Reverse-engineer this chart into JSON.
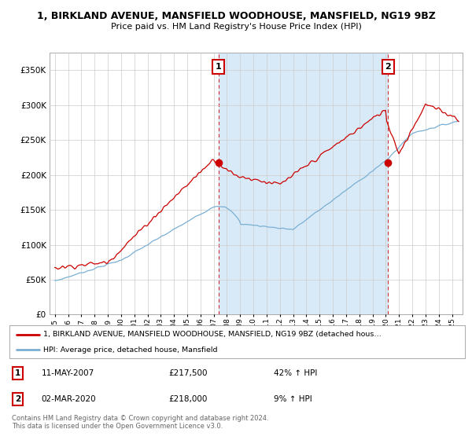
{
  "title": "1, BIRKLAND AVENUE, MANSFIELD WOODHOUSE, MANSFIELD, NG19 9BZ",
  "subtitle": "Price paid vs. HM Land Registry's House Price Index (HPI)",
  "ylim": [
    0,
    375000
  ],
  "yticks": [
    0,
    50000,
    100000,
    150000,
    200000,
    250000,
    300000,
    350000
  ],
  "sale1_x": 2007.36,
  "sale1_price": 217500,
  "sale2_x": 2020.17,
  "sale2_price": 218000,
  "hpi_color": "#7aafd4",
  "price_color": "#cc0000",
  "fill_color": "#d8eaf7",
  "legend1_text": "1, BIRKLAND AVENUE, MANSFIELD WOODHOUSE, MANSFIELD, NG19 9BZ (detached hous…",
  "legend2_text": "HPI: Average price, detached house, Mansfield",
  "table_rows": [
    {
      "num": "1",
      "date": "11-MAY-2007",
      "price": "£217,500",
      "change": "42% ↑ HPI"
    },
    {
      "num": "2",
      "date": "02-MAR-2020",
      "price": "£218,000",
      "change": "9% ↑ HPI"
    }
  ],
  "footnote": "Contains HM Land Registry data © Crown copyright and database right 2024.\nThis data is licensed under the Open Government Licence v3.0.",
  "background_color": "#ffffff",
  "grid_color": "#cccccc"
}
